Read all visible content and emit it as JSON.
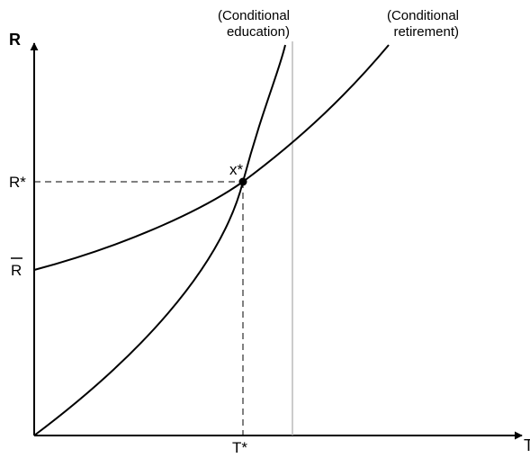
{
  "axes": {
    "y_label": "R",
    "x_label": "T"
  },
  "curves": {
    "education_label_line1": "(Conditional",
    "education_label_line2": "education)",
    "retirement_label_line1": "(Conditional",
    "retirement_label_line2": "retirement)"
  },
  "equilibrium": {
    "point_label": "x*",
    "r_star_label": "R*",
    "t_star_label": "T*"
  },
  "r_bar": {
    "label": "R",
    "overbar": true
  },
  "colors": {
    "ink": "#000000",
    "vertical_reference_line": "#b0b0b0"
  }
}
